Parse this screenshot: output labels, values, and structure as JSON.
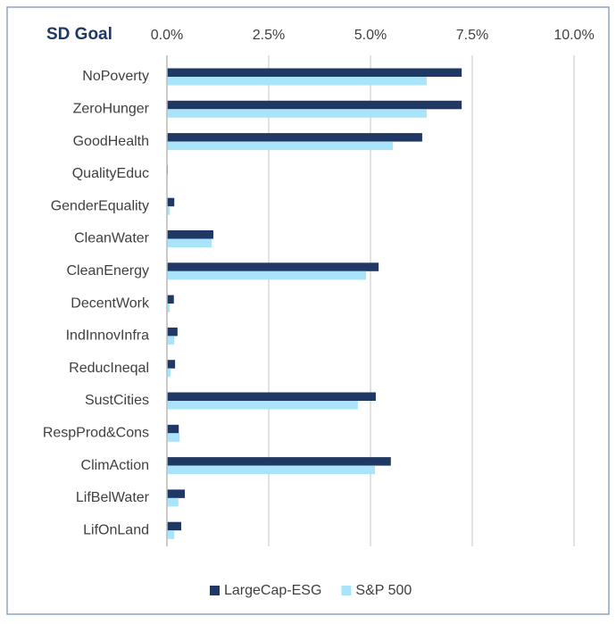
{
  "chart_data": {
    "type": "hbar",
    "title": "SD Goal",
    "categories": [
      "NoPoverty",
      "ZeroHunger",
      "GoodHealth",
      "QualityEduc",
      "GenderEquality",
      "CleanWater",
      "CleanEnergy",
      "DecentWork",
      "IndInnovInfra",
      "ReducIneqal",
      "SustCities",
      "RespProd&Cons",
      "ClimAction",
      "LifBelWater",
      "LifOnLand"
    ],
    "series": [
      {
        "name": "LargeCap-ESG",
        "color": "#203864",
        "values": [
          7.24,
          7.24,
          6.27,
          0.02,
          0.18,
          1.14,
          5.2,
          0.17,
          0.26,
          0.2,
          5.13,
          0.29,
          5.5,
          0.44,
          0.35
        ]
      },
      {
        "name": "S&P 500",
        "color": "#a9e4fb",
        "values": [
          6.38,
          6.38,
          5.55,
          0.02,
          0.07,
          1.1,
          4.89,
          0.07,
          0.18,
          0.09,
          4.69,
          0.31,
          5.11,
          0.28,
          0.18
        ]
      }
    ],
    "xlim": [
      0,
      10
    ],
    "xticks": [
      {
        "value": 0,
        "label": "0.0%"
      },
      {
        "value": 2.5,
        "label": "2.5%"
      },
      {
        "value": 5,
        "label": "5.0%"
      },
      {
        "value": 7.5,
        "label": "7.5%"
      },
      {
        "value": 10,
        "label": "10.0%"
      }
    ],
    "grid": true,
    "legend": "bottom"
  }
}
